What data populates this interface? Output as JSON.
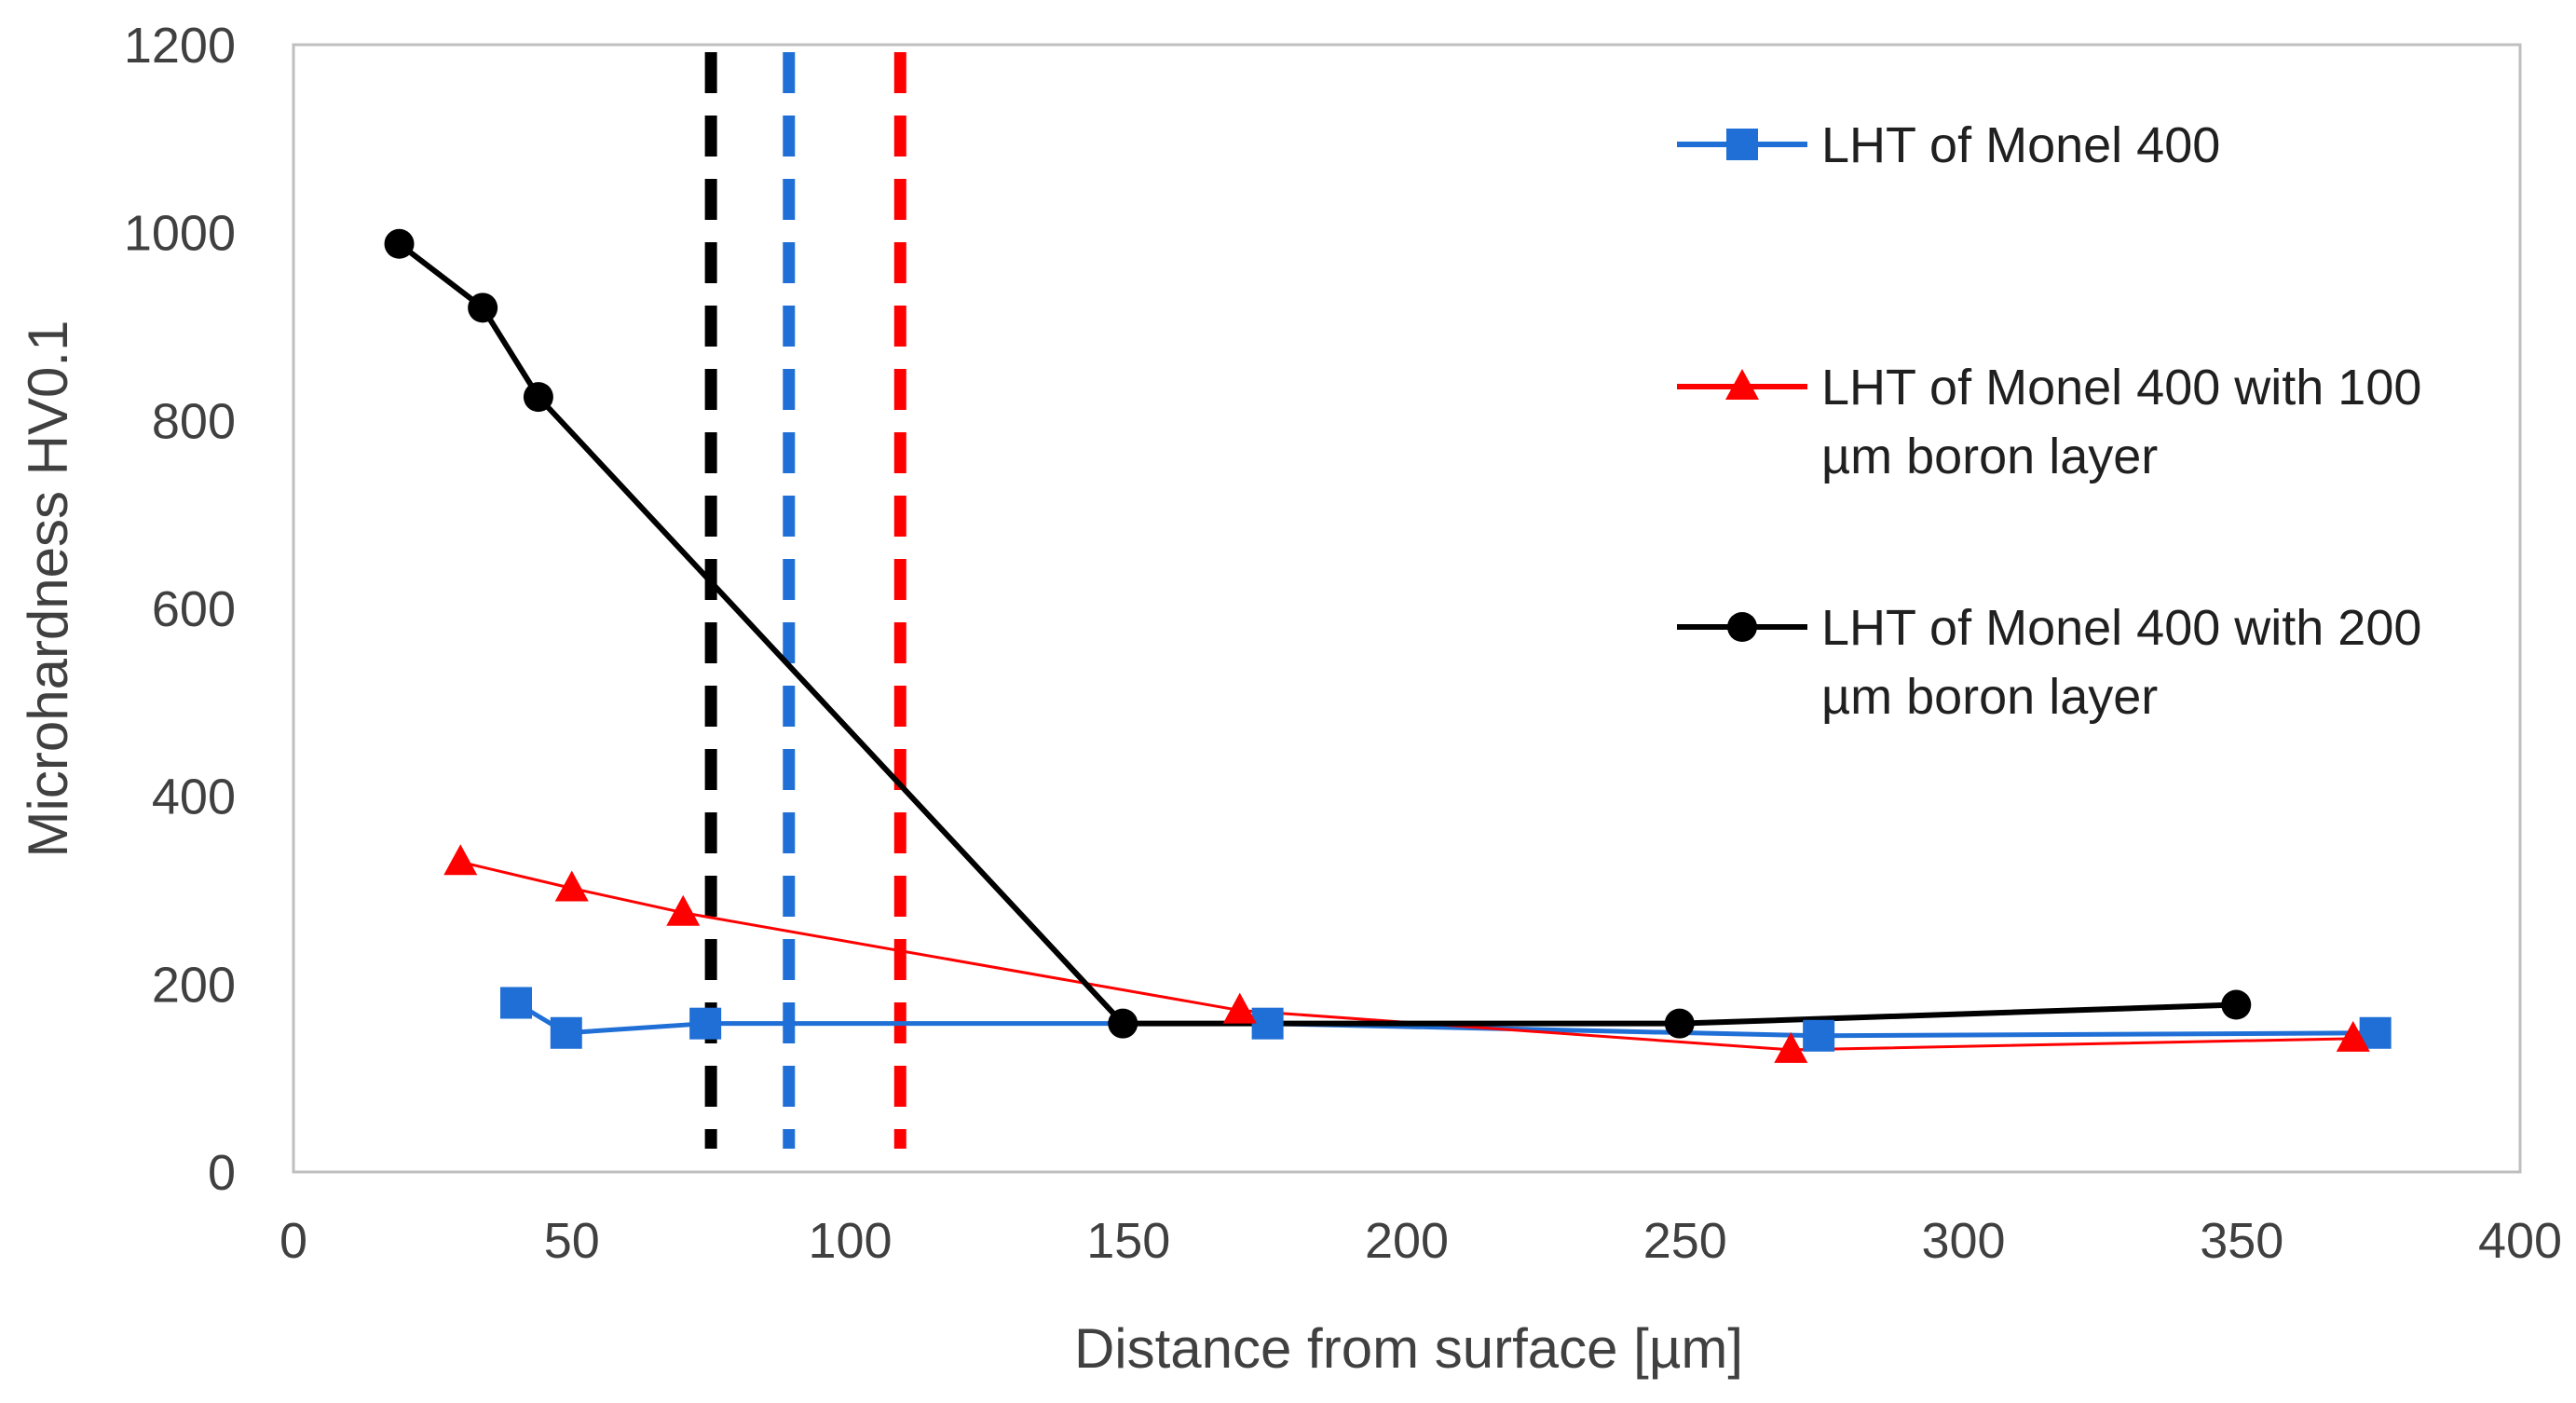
{
  "chart_data": {
    "type": "line",
    "title": "",
    "xlabel": "Distance from surface [µm]",
    "ylabel": "Microhardness HV0.1",
    "xlim": [
      0,
      400
    ],
    "ylim": [
      0,
      1200
    ],
    "xticks": [
      0,
      50,
      100,
      150,
      200,
      250,
      300,
      350,
      400
    ],
    "yticks": [
      0,
      200,
      400,
      600,
      800,
      1000,
      1200
    ],
    "grid": false,
    "legend_position": "right",
    "series": [
      {
        "name": "LHT of Monel 400",
        "legend_lines": [
          "LHT of Monel 400"
        ],
        "color": "#1f6fd6",
        "marker": "square",
        "x": [
          40,
          49,
          74,
          175,
          274,
          374
        ],
        "y": [
          180,
          148,
          158,
          158,
          145,
          148
        ]
      },
      {
        "name": "LHT of Monel 400 with 100 µm boron layer",
        "legend_lines": [
          "LHT of Monel 400 with 100",
          "µm boron layer"
        ],
        "color": "#ff0000",
        "marker": "triangle",
        "x": [
          30,
          50,
          70,
          170,
          269,
          370
        ],
        "y": [
          330,
          302,
          276,
          172,
          130,
          142
        ]
      },
      {
        "name": "LHT of Monel 400 with 200 µm boron layer",
        "legend_lines": [
          "LHT of Monel 400 with 200",
          "µm boron layer"
        ],
        "color": "#000000",
        "marker": "circle",
        "x": [
          19,
          34,
          44,
          149,
          249,
          349
        ],
        "y": [
          988,
          920,
          825,
          158,
          158,
          178
        ]
      }
    ],
    "reference_lines": [
      {
        "x": 75,
        "color": "#000000",
        "style": "dashed"
      },
      {
        "x": 89,
        "color": "#1f6fd6",
        "style": "dashed"
      },
      {
        "x": 109,
        "color": "#ff0000",
        "style": "dashed"
      }
    ]
  }
}
